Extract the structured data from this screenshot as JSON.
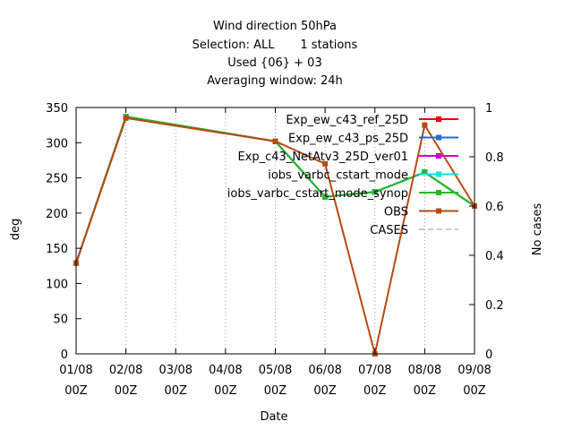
{
  "chart_data": {
    "type": "line",
    "title_lines": [
      "Wind direction 50hPa",
      "Selection: ALL       1 stations",
      "Used {06} + 03",
      "Averaging window: 24h"
    ],
    "xlabel": "Date",
    "ylabel": "deg",
    "y2label": "No cases",
    "categories": [
      "01/08 00Z",
      "02/08 00Z",
      "03/08 00Z",
      "04/08 00Z",
      "05/08 00Z",
      "06/08 00Z",
      "07/08 00Z",
      "08/08 00Z",
      "09/08 00Z"
    ],
    "x_tick_lines": [
      [
        "01/08",
        "00Z"
      ],
      [
        "02/08",
        "00Z"
      ],
      [
        "03/08",
        "00Z"
      ],
      [
        "04/08",
        "00Z"
      ],
      [
        "05/08",
        "00Z"
      ],
      [
        "06/08",
        "00Z"
      ],
      [
        "07/08",
        "00Z"
      ],
      [
        "08/08",
        "00Z"
      ],
      [
        "09/08",
        "00Z"
      ]
    ],
    "ylim": [
      0,
      350
    ],
    "yticks": [
      0,
      50,
      100,
      150,
      200,
      250,
      300,
      350
    ],
    "y2lim": [
      0,
      1
    ],
    "y2ticks": [
      0,
      0.2,
      0.4,
      0.6,
      0.8,
      1
    ],
    "y2tick_labels": [
      "0",
      "0.2",
      "0.4",
      "0.6",
      "0.8",
      "1"
    ],
    "grid": true,
    "legend_position": "top-right",
    "series": [
      {
        "name": "Exp_ew_c43_ref_25D",
        "color": "#ee0000",
        "marker": "square",
        "x": [
          0,
          1,
          4,
          5,
          6,
          7,
          8
        ],
        "values": [
          129,
          337,
          302,
          223,
          230,
          258,
          210
        ]
      },
      {
        "name": "Exp_ew_c43_ps_25D",
        "color": "#1f6fd0",
        "marker": "square",
        "x": [
          0,
          1,
          4,
          5,
          6,
          7,
          8
        ],
        "values": [
          129,
          337,
          302,
          223,
          230,
          258,
          210
        ]
      },
      {
        "name": "Exp_c43_NetAtv3_25D_ver01",
        "color": "#cc00cc",
        "marker": "square",
        "x": [
          0,
          1,
          4,
          5,
          6,
          7,
          8
        ],
        "values": [
          129,
          337,
          302,
          223,
          230,
          258,
          210
        ]
      },
      {
        "name": "iobs_varbc_cstart_mode",
        "color": "#00e5e5",
        "marker": "square",
        "x": [
          0,
          1,
          4,
          5,
          6,
          7,
          8
        ],
        "values": [
          129,
          337,
          302,
          223,
          230,
          258,
          210
        ]
      },
      {
        "name": "iobs_varbc_cstart_mode_synop",
        "color": "#22bb22",
        "marker": "square",
        "x": [
          0,
          1,
          4,
          5,
          6,
          7,
          8
        ],
        "values": [
          129,
          337,
          302,
          223,
          230,
          258,
          210
        ]
      },
      {
        "name": "OBS",
        "color": "#b84a10",
        "marker": "square",
        "x": [
          0,
          1,
          4,
          5,
          6,
          7,
          8
        ],
        "values": [
          129,
          335,
          302,
          270,
          0,
          325,
          210
        ]
      },
      {
        "name": "CASES",
        "color": "#9a9a9a",
        "marker": "none",
        "dashed": true,
        "axis": "y2",
        "x": [
          0,
          1,
          4,
          5,
          6,
          7,
          8
        ],
        "values": [
          1,
          1,
          1,
          1,
          1,
          1,
          1
        ]
      }
    ]
  }
}
